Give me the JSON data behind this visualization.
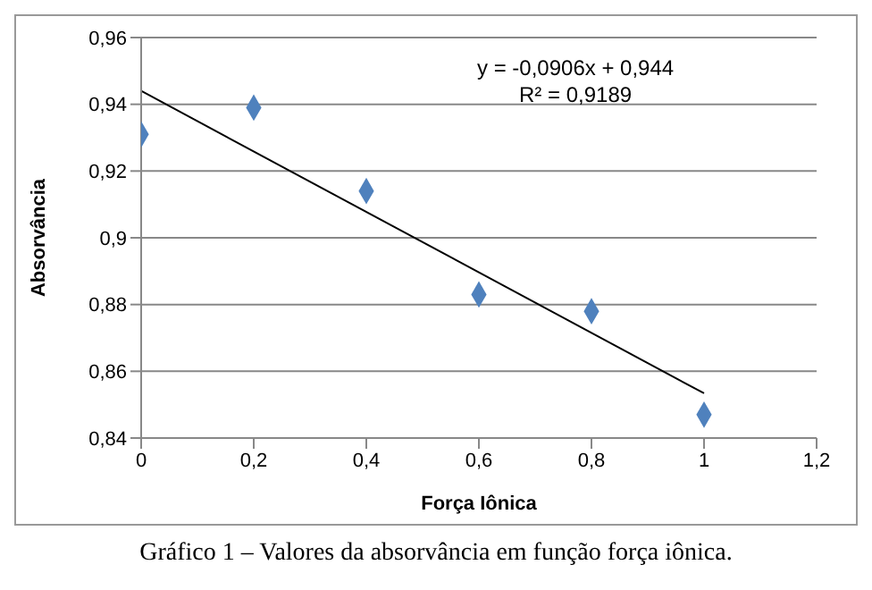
{
  "chart_data": {
    "type": "scatter",
    "xlabel": "Força Iônica",
    "ylabel": "Absorvância",
    "x": [
      0,
      0.2,
      0.4,
      0.6,
      0.8,
      1
    ],
    "series": [
      {
        "color": "#4f81bd",
        "marker": "diamond",
        "values": [
          0.931,
          0.939,
          0.914,
          0.883,
          0.878,
          0.847
        ]
      },
      {
        "type": "line",
        "color": "#000000",
        "marker": "none",
        "x": [
          0,
          1
        ],
        "values": [
          0.944,
          0.8534
        ]
      }
    ],
    "xlim": [
      0,
      1.2
    ],
    "xticks": [
      {
        "value": 0,
        "label": "0"
      },
      {
        "value": 0.2,
        "label": "0,2"
      },
      {
        "value": 0.4,
        "label": "0,4"
      },
      {
        "value": 0.6,
        "label": "0,6"
      },
      {
        "value": 0.8,
        "label": "0,8"
      },
      {
        "value": 1,
        "label": "1"
      },
      {
        "value": 1.2,
        "label": "1,2"
      }
    ],
    "ylim": [
      0.84,
      0.96
    ],
    "yticks": [
      {
        "value": 0.84,
        "label": "0,84"
      },
      {
        "value": 0.86,
        "label": "0,86"
      },
      {
        "value": 0.88,
        "label": "0,88"
      },
      {
        "value": 0.9,
        "label": "0,9"
      },
      {
        "value": 0.92,
        "label": "0,92"
      },
      {
        "value": 0.94,
        "label": "0,94"
      },
      {
        "value": 0.96,
        "label": "0,96"
      }
    ],
    "grid": "y",
    "annotations": [
      "y = -0,0906x + 0,944",
      "R² = 0,9189",
      "Gráfico 1 – Valores da absorvância em função força iônica."
    ]
  }
}
